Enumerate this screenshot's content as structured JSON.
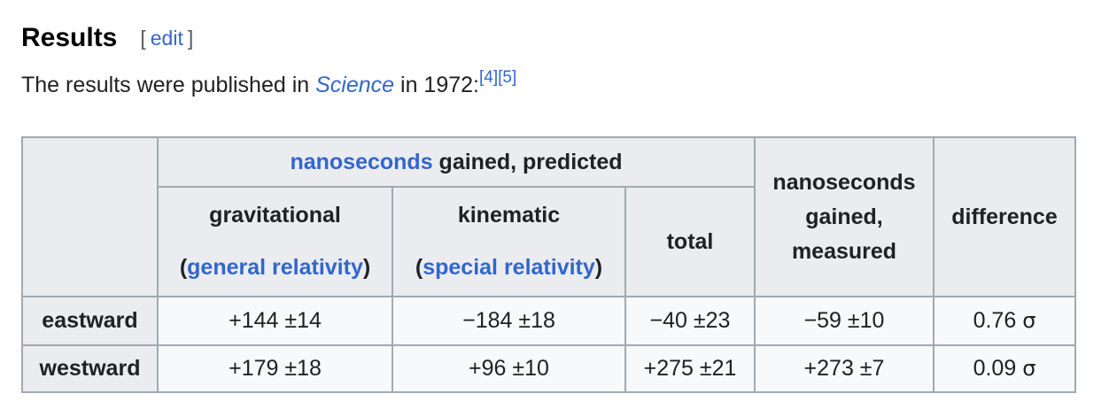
{
  "section": {
    "title": "Results",
    "edit_open": "[",
    "edit_label": "edit",
    "edit_close": "]"
  },
  "intro": {
    "text_before": "The results were published in ",
    "journal": "Science",
    "text_after": " in 1972:",
    "ref1": "[4]",
    "ref2": "[5]"
  },
  "table": {
    "header_predicted_link": "nanoseconds",
    "header_predicted_rest": " gained, predicted",
    "col_grav_line1": "gravitational",
    "col_grav_open": "(",
    "col_grav_link": "general relativity",
    "col_grav_close": ")",
    "col_kin_line1": "kinematic",
    "col_kin_open": "(",
    "col_kin_link": "special relativity",
    "col_kin_close": ")",
    "col_total": "total",
    "col_measured_1": "nanoseconds",
    "col_measured_2": "gained,",
    "col_measured_3": "measured",
    "col_difference": "difference",
    "rows": [
      {
        "label": "eastward",
        "grav": "+144 ±14",
        "kin": "−184 ±18",
        "total": "−40 ±23",
        "measured": "−59 ±10",
        "diff": "0.76",
        "sigma": "σ"
      },
      {
        "label": "westward",
        "grav": "+179 ±18",
        "kin": "+96 ±10",
        "total": "+275 ±21",
        "measured": "+273 ±7",
        "diff": "0.09",
        "sigma": "σ"
      }
    ]
  }
}
